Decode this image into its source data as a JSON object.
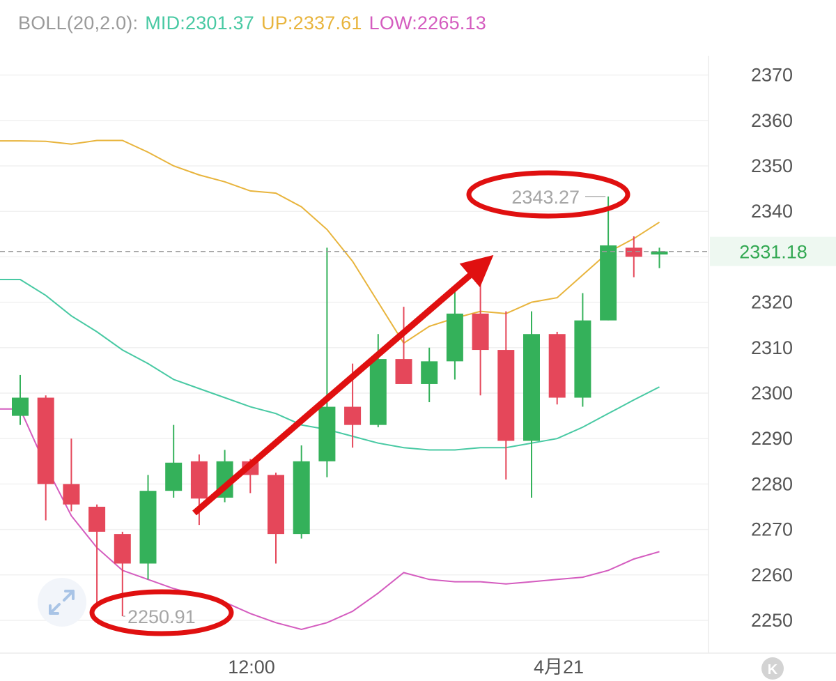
{
  "indicator": {
    "name": "BOLL(20,2.0):",
    "mid": "MID:2301.37",
    "up": "UP:2337.61",
    "low": "LOW:2265.13"
  },
  "colors": {
    "up_candle": "#34b15a",
    "down_candle": "#e5475a",
    "mid_line": "#48c9a3",
    "up_line": "#e8b43c",
    "low_line": "#d45cbf",
    "label_gray": "#a0a0a0",
    "current_price": "#32a852",
    "annotation": "#e01010"
  },
  "price_tag": "2331.18",
  "current_price": 2331.18,
  "expand_icon": "expand-arrows-icon",
  "k_button": "K",
  "chart_data": {
    "type": "candlestick",
    "y_ticks": [
      "2370",
      "2360",
      "2350",
      "2340",
      "2330",
      "2320",
      "2310",
      "2300",
      "2290",
      "2280",
      "2270",
      "2260",
      "2250"
    ],
    "ylim": [
      2244,
      2382
    ],
    "x_ticks": [
      "12:00",
      "4月21"
    ],
    "max_label": "2343.27",
    "min_label": "2250.91",
    "candles": [
      {
        "o": 2295.0,
        "h": 2304.0,
        "l": 2293.0,
        "c": 2299.0
      },
      {
        "o": 2299.0,
        "h": 2299.5,
        "l": 2272.0,
        "c": 2280.0
      },
      {
        "o": 2280.0,
        "h": 2290.0,
        "l": 2274.0,
        "c": 2275.5
      },
      {
        "o": 2275.0,
        "h": 2275.5,
        "l": 2253.0,
        "c": 2269.5
      },
      {
        "o": 2269.0,
        "h": 2269.5,
        "l": 2250.91,
        "c": 2262.5
      },
      {
        "o": 2262.5,
        "h": 2282.0,
        "l": 2259.0,
        "c": 2278.5
      },
      {
        "o": 2278.5,
        "h": 2293.0,
        "l": 2277.0,
        "c": 2284.7
      },
      {
        "o": 2285.0,
        "h": 2286.5,
        "l": 2271.0,
        "c": 2276.8
      },
      {
        "o": 2277.0,
        "h": 2287.5,
        "l": 2276.0,
        "c": 2285.0
      },
      {
        "o": 2285.0,
        "h": 2285.5,
        "l": 2278.0,
        "c": 2282.0
      },
      {
        "o": 2282.0,
        "h": 2282.5,
        "l": 2262.5,
        "c": 2269.0
      },
      {
        "o": 2269.0,
        "h": 2288.5,
        "l": 2268.0,
        "c": 2285.0
      },
      {
        "o": 2285.0,
        "h": 2332.0,
        "l": 2281.5,
        "c": 2297.0
      },
      {
        "o": 2297.0,
        "h": 2306.5,
        "l": 2288.0,
        "c": 2293.0
      },
      {
        "o": 2293.0,
        "h": 2313.0,
        "l": 2292.5,
        "c": 2307.5
      },
      {
        "o": 2307.5,
        "h": 2319.0,
        "l": 2302.0,
        "c": 2302.0
      },
      {
        "o": 2302.0,
        "h": 2310.0,
        "l": 2298.0,
        "c": 2307.0
      },
      {
        "o": 2307.0,
        "h": 2323.0,
        "l": 2303.0,
        "c": 2317.5
      },
      {
        "o": 2317.5,
        "h": 2326.0,
        "l": 2299.5,
        "c": 2309.5
      },
      {
        "o": 2309.5,
        "h": 2318.0,
        "l": 2281.0,
        "c": 2289.5
      },
      {
        "o": 2289.5,
        "h": 2318.0,
        "l": 2277.0,
        "c": 2313.0
      },
      {
        "o": 2313.0,
        "h": 2313.5,
        "l": 2297.5,
        "c": 2299.0
      },
      {
        "o": 2299.0,
        "h": 2322.0,
        "l": 2297.0,
        "c": 2316.0
      },
      {
        "o": 2316.0,
        "h": 2343.27,
        "l": 2316.0,
        "c": 2332.5
      },
      {
        "o": 2332.0,
        "h": 2334.5,
        "l": 2325.5,
        "c": 2330.0
      },
      {
        "o": 2330.5,
        "h": 2332.0,
        "l": 2327.5,
        "c": 2331.18
      }
    ],
    "boll_up": [
      2355.5,
      2355.4,
      2354.8,
      2355.6,
      2355.6,
      2353.0,
      2350.0,
      2348.0,
      2346.5,
      2344.5,
      2344.0,
      2341.0,
      2336.0,
      2329.0,
      2320.0,
      2311.0,
      2314.7,
      2316.5,
      2318.0,
      2317.5,
      2320.0,
      2321.0,
      2326.0,
      2331.0,
      2334.0,
      2337.61
    ],
    "boll_mid": [
      2325.0,
      2321.5,
      2317.0,
      2313.5,
      2309.5,
      2306.5,
      2303.0,
      2301.0,
      2299.0,
      2297.0,
      2295.5,
      2293.0,
      2292.0,
      2290.5,
      2289.0,
      2288.0,
      2287.5,
      2287.5,
      2288.0,
      2288.0,
      2289.0,
      2290.0,
      2292.5,
      2295.5,
      2298.5,
      2301.37
    ],
    "boll_low": [
      2296.5,
      2284.0,
      2273.0,
      2266.0,
      2261.0,
      2259.0,
      2257.0,
      2255.5,
      2254.0,
      2251.5,
      2249.5,
      2248.0,
      2249.5,
      2252.0,
      2256.0,
      2260.5,
      2259.0,
      2258.5,
      2258.5,
      2258.0,
      2258.5,
      2259.0,
      2259.5,
      2261.0,
      2263.5,
      2265.13
    ]
  }
}
